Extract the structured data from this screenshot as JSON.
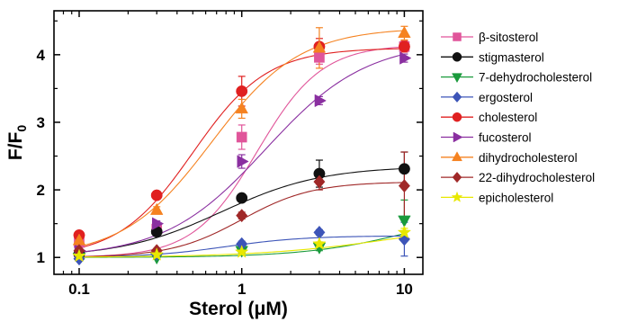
{
  "chart_data": {
    "type": "scatter",
    "xlabel": "Sterol (μM)",
    "ylabel_main": "F/F",
    "ylabel_sub": "0",
    "x_scale": "log",
    "xlim": [
      0.07,
      13
    ],
    "ylim": [
      0.75,
      4.65
    ],
    "x_ticks": [
      0.1,
      1,
      10
    ],
    "x_tick_labels": [
      "0.1",
      "1",
      "10"
    ],
    "y_ticks": [
      1,
      2,
      3,
      4
    ],
    "y_tick_labels": [
      "1",
      "2",
      "3",
      "4"
    ],
    "x": [
      0.1,
      0.3,
      1,
      3,
      10
    ],
    "legend_position": "right",
    "series": [
      {
        "name": "β-sitosterol",
        "color": "#e0559a",
        "marker": "square",
        "values": [
          1.22,
          1.42,
          2.78,
          3.96,
          4.12
        ],
        "errors": [
          0.04,
          0.04,
          0.18,
          0.1,
          0.08
        ],
        "fit": {
          "bottom": 1.0,
          "top": 4.15,
          "ec50": 1.25,
          "hill": 2.2
        }
      },
      {
        "name": "stigmasterol",
        "color": "#111111",
        "marker": "circle",
        "values": [
          1.05,
          1.38,
          1.88,
          2.24,
          2.31
        ],
        "errors": [
          0.03,
          0.05,
          0.05,
          0.2,
          0.25
        ],
        "fit": {
          "bottom": 1.0,
          "top": 2.35,
          "ec50": 0.75,
          "hill": 1.4
        }
      },
      {
        "name": "7-dehydrocholesterol",
        "color": "#1a9a3c",
        "marker": "triangle-down",
        "values": [
          1.0,
          1.0,
          1.1,
          1.15,
          1.55
        ],
        "errors": [
          0.02,
          0.02,
          0.03,
          0.05,
          0.3
        ],
        "fit": {
          "bottom": 1.0,
          "top": 1.8,
          "ec50": 12,
          "hill": 1.3
        }
      },
      {
        "name": "ergosterol",
        "color": "#3d55b8",
        "marker": "diamond",
        "values": [
          0.98,
          1.05,
          1.2,
          1.37,
          1.27
        ],
        "errors": [
          0.02,
          0.02,
          0.04,
          0.04,
          0.25
        ],
        "fit": {
          "bottom": 1.0,
          "top": 1.32,
          "ec50": 0.8,
          "hill": 1.8
        }
      },
      {
        "name": "cholesterol",
        "color": "#e02020",
        "marker": "circle",
        "values": [
          1.33,
          1.92,
          3.46,
          4.12,
          4.12
        ],
        "errors": [
          0.05,
          0.06,
          0.22,
          0.12,
          0.08
        ],
        "fit": {
          "bottom": 1.0,
          "top": 4.1,
          "ec50": 0.5,
          "hill": 1.9
        }
      },
      {
        "name": "fucosterol",
        "color": "#8a2fa0",
        "marker": "triangle-right",
        "values": [
          1.1,
          1.5,
          2.42,
          3.32,
          3.95
        ],
        "errors": [
          0.03,
          0.04,
          0.1,
          0.06,
          0.06
        ],
        "fit": {
          "bottom": 1.0,
          "top": 4.2,
          "ec50": 1.4,
          "hill": 1.4
        }
      },
      {
        "name": "dihydrocholesterol",
        "color": "#f58220",
        "marker": "triangle-up",
        "values": [
          1.25,
          1.7,
          3.2,
          4.1,
          4.32
        ],
        "errors": [
          0.04,
          0.05,
          0.14,
          0.3,
          0.1
        ],
        "fit": {
          "bottom": 1.0,
          "top": 4.4,
          "ec50": 0.65,
          "hill": 1.6
        }
      },
      {
        "name": "22-dihydrocholesterol",
        "color": "#a02828",
        "marker": "diamond",
        "values": [
          1.1,
          1.1,
          1.62,
          2.12,
          2.06
        ],
        "errors": [
          0.03,
          0.03,
          0.05,
          0.12,
          0.5
        ],
        "fit": {
          "bottom": 1.0,
          "top": 2.12,
          "ec50": 1.0,
          "hill": 2.0
        }
      },
      {
        "name": "epicholesterol",
        "color": "#e8e800",
        "marker": "star",
        "values": [
          1.02,
          1.04,
          1.08,
          1.2,
          1.37
        ],
        "errors": [
          0.02,
          0.02,
          0.03,
          0.03,
          0.06
        ],
        "fit": {
          "bottom": 1.0,
          "top": 1.6,
          "ec50": 10,
          "hill": 1.0
        }
      }
    ]
  }
}
